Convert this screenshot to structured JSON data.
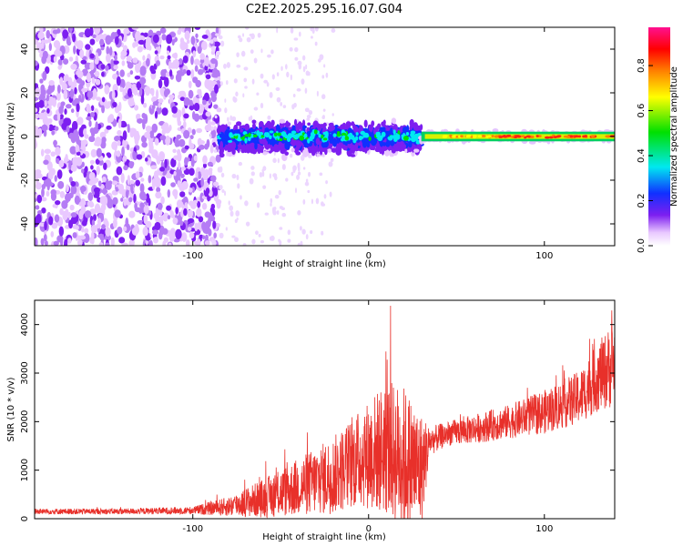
{
  "title": "C2E2.2025.295.16.07.G04",
  "chart_data": [
    {
      "type": "heatmap",
      "xlabel": "Height of straight line (km)",
      "ylabel": "Frequency (Hz)",
      "xlim": [
        -190,
        140
      ],
      "ylim": [
        -50,
        50
      ],
      "x_ticks": [
        -100,
        0,
        100
      ],
      "y_ticks": [
        -40,
        -20,
        0,
        20,
        40
      ],
      "colorbar": {
        "label": "Normalized spectral amplitude",
        "range": [
          0.0,
          0.97
        ],
        "ticks": [
          0.0,
          0.2,
          0.4,
          0.6,
          0.8
        ],
        "colors": [
          "#ffffff",
          "#e9c8ff",
          "#7d1ff0",
          "#1030ff",
          "#00e8f0",
          "#00e000",
          "#ffff00",
          "#ff8000",
          "#ff0000",
          "#ff1090"
        ]
      },
      "description_regions": [
        {
          "x_range": [
            -190,
            -85
          ],
          "freq_range": [
            -50,
            50
          ],
          "level": 0.15
        },
        {
          "x_range": [
            -85,
            30
          ],
          "freq_range": [
            -12,
            10
          ],
          "level": 0.3
        },
        {
          "x_range": [
            30,
            140
          ],
          "freq_range": [
            -3,
            3
          ],
          "level": 0.75
        }
      ]
    },
    {
      "type": "line",
      "xlabel": "Height of straight line (km)",
      "ylabel": "SNR (10 * v/v)",
      "xlim": [
        -190,
        140
      ],
      "ylim": [
        0,
        4500
      ],
      "x_ticks": [
        -100,
        0,
        100
      ],
      "y_ticks": [
        0,
        1000,
        2000,
        3000,
        4000
      ],
      "color": "#e8302a",
      "envelope": {
        "x": [
          -190,
          -140,
          -100,
          -80,
          -60,
          -40,
          -20,
          -5,
          10,
          20,
          30,
          35,
          45,
          60,
          80,
          100,
          120,
          130,
          140
        ],
        "mean": [
          150,
          150,
          170,
          250,
          420,
          650,
          900,
          1250,
          1450,
          1250,
          1000,
          1600,
          1750,
          1850,
          2000,
          2200,
          2500,
          2900,
          3200
        ],
        "spread": [
          60,
          60,
          80,
          200,
          400,
          600,
          800,
          1000,
          1400,
          1500,
          1200,
          300,
          250,
          300,
          350,
          450,
          550,
          700,
          900
        ]
      }
    }
  ]
}
